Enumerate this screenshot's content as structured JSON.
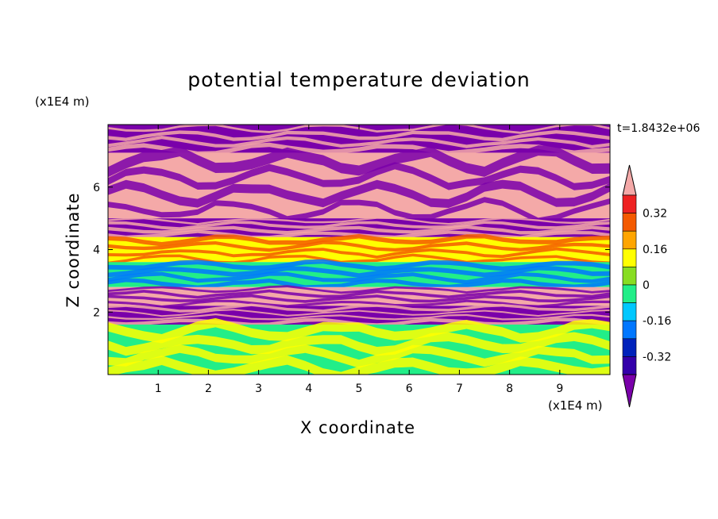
{
  "chart_data": {
    "type": "heatmap",
    "title": "potential temperature deviation",
    "xlabel": "X coordinate",
    "ylabel": "Z coordinate",
    "x_unit": "(x1E4 m)",
    "y_unit": "(x1E4 m)",
    "time_label": "t=1.8432e+06",
    "xlim": [
      0,
      10
    ],
    "ylim": [
      0,
      8
    ],
    "x_ticks": [
      "1",
      "2",
      "3",
      "4",
      "5",
      "6",
      "7",
      "8",
      "9"
    ],
    "y_ticks": [
      "2",
      "4",
      "6"
    ],
    "colorbar": {
      "tick_labels": [
        "0.32",
        "0.16",
        "0",
        "-0.16",
        "-0.32"
      ],
      "levels_top_to_bottom": [
        ">0.4",
        "0.32-0.4",
        "0.24-0.32",
        "0.16-0.24",
        "0.08-0.16",
        "0-0.08",
        "-0.08-0",
        "-0.16--0.08",
        "-0.24--0.16",
        "-0.32--0.24",
        "-0.4--0.32",
        "<-0.4"
      ],
      "colors_top_to_bottom": [
        "#f4a9a8",
        "#ee2222",
        "#f45a00",
        "#ffa500",
        "#ffff00",
        "#88dd22",
        "#22ee88",
        "#00c8ff",
        "#0077ff",
        "#0022bb",
        "#3300aa",
        "#7a00aa"
      ]
    },
    "bands": [
      {
        "z": [
          7.1,
          8.0
        ],
        "dominant": "<-0.4",
        "mixed_with": ">0.4"
      },
      {
        "z": [
          5.0,
          7.1
        ],
        "dominant": ">0.4",
        "mixed_with": "<-0.4"
      },
      {
        "z": [
          4.4,
          5.0
        ],
        "dominant": "<-0.4",
        "mixed_with": ">0.4"
      },
      {
        "z": [
          3.6,
          4.4
        ],
        "dominant": "0.08-0.16",
        "mixed_with": "0.24-0.32"
      },
      {
        "z": [
          2.8,
          3.6
        ],
        "dominant": "-0.08-0",
        "mixed_with": "-0.24--0.16"
      },
      {
        "z": [
          2.2,
          2.8
        ],
        "dominant": ">0.4",
        "mixed_with": "<-0.4"
      },
      {
        "z": [
          1.6,
          2.2
        ],
        "dominant": "<-0.4",
        "mixed_with": ">0.4"
      },
      {
        "z": [
          0.0,
          1.6
        ],
        "dominant": "-0.08-0",
        "mixed_with": "0.08-0.16"
      }
    ]
  }
}
